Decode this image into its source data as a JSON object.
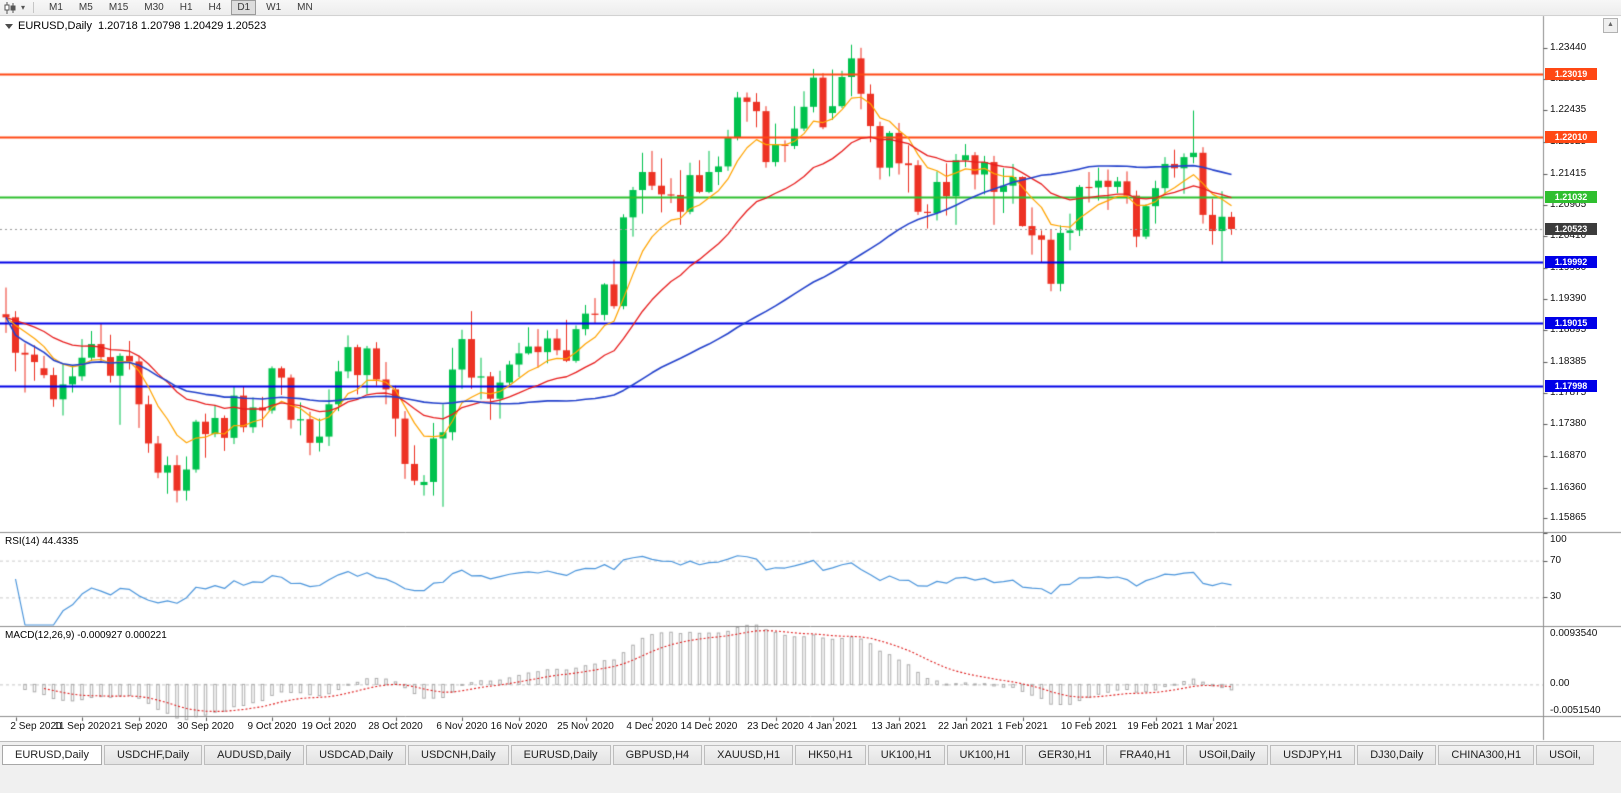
{
  "toolbar": {
    "timeframes": [
      "M1",
      "M5",
      "M15",
      "M30",
      "H1",
      "H4",
      "D1",
      "W1",
      "MN"
    ],
    "active": "D1"
  },
  "chart": {
    "symbol_label": "EURUSD,Daily",
    "ohlc_text": "1.20718 1.20798 1.20429 1.20523"
  },
  "chart_data": {
    "type": "candlestick",
    "title": "EURUSD,Daily",
    "y_range": {
      "max": 1.2392,
      "min": 1.1566
    },
    "y_ticks": [
      "1.23440",
      "1.22930",
      "1.22435",
      "1.21925",
      "1.21415",
      "1.20905",
      "1.20410",
      "1.19900",
      "1.19390",
      "1.18895",
      "1.18385",
      "1.17875",
      "1.17380",
      "1.16870",
      "1.16360",
      "1.15865"
    ],
    "x_axis_dates": [
      {
        "i": 1,
        "label": "2 Sep 2020"
      },
      {
        "i": 8,
        "label": "11 Sep 2020"
      },
      {
        "i": 14,
        "label": "21 Sep 2020"
      },
      {
        "i": 21,
        "label": "30 Sep 2020"
      },
      {
        "i": 28,
        "label": "9 Oct 2020"
      },
      {
        "i": 34,
        "label": "19 Oct 2020"
      },
      {
        "i": 41,
        "label": "28 Oct 2020"
      },
      {
        "i": 48,
        "label": "6 Nov 2020"
      },
      {
        "i": 54,
        "label": "16 Nov 2020"
      },
      {
        "i": 61,
        "label": "25 Nov 2020"
      },
      {
        "i": 68,
        "label": "4 Dec 2020"
      },
      {
        "i": 74,
        "label": "14 Dec 2020"
      },
      {
        "i": 81,
        "label": "23 Dec 2020"
      },
      {
        "i": 87,
        "label": "4 Jan 2021"
      },
      {
        "i": 94,
        "label": "13 Jan 2021"
      },
      {
        "i": 101,
        "label": "22 Jan 2021"
      },
      {
        "i": 107,
        "label": "1 Feb 2021"
      },
      {
        "i": 114,
        "label": "10 Feb 2021"
      },
      {
        "i": 121,
        "label": "19 Feb 2021"
      },
      {
        "i": 127,
        "label": "1 Mar 2021"
      }
    ],
    "candles": [
      [
        1.1915,
        1.1958,
        1.1885,
        1.191
      ],
      [
        1.191,
        1.192,
        1.1823,
        1.1853
      ],
      [
        1.1853,
        1.1868,
        1.1789,
        1.185
      ],
      [
        1.185,
        1.1865,
        1.1808,
        1.1838
      ],
      [
        1.1828,
        1.1848,
        1.1812,
        1.1817
      ],
      [
        1.1817,
        1.1829,
        1.1766,
        1.1778
      ],
      [
        1.1778,
        1.1834,
        1.1752,
        1.1802
      ],
      [
        1.1802,
        1.1833,
        1.1789,
        1.1815
      ],
      [
        1.1815,
        1.1875,
        1.1808,
        1.1845
      ],
      [
        1.1845,
        1.1888,
        1.184,
        1.1867
      ],
      [
        1.1867,
        1.19,
        1.1838,
        1.1846
      ],
      [
        1.1846,
        1.1882,
        1.1805,
        1.1816
      ],
      [
        1.1816,
        1.1852,
        1.1737,
        1.1848
      ],
      [
        1.1848,
        1.1872,
        1.1826,
        1.1839
      ],
      [
        1.1839,
        1.1848,
        1.1732,
        1.177
      ],
      [
        1.177,
        1.1784,
        1.1692,
        1.1707
      ],
      [
        1.1707,
        1.1719,
        1.1651,
        1.166
      ],
      [
        1.166,
        1.1686,
        1.1626,
        1.1672
      ],
      [
        1.1672,
        1.1688,
        1.1612,
        1.1631
      ],
      [
        1.1631,
        1.1686,
        1.1615,
        1.1665
      ],
      [
        1.1665,
        1.1745,
        1.166,
        1.1742
      ],
      [
        1.1742,
        1.1755,
        1.1684,
        1.1722
      ],
      [
        1.1722,
        1.1769,
        1.1717,
        1.1748
      ],
      [
        1.1748,
        1.1752,
        1.1695,
        1.1716
      ],
      [
        1.1716,
        1.1798,
        1.1706,
        1.1784
      ],
      [
        1.1784,
        1.1798,
        1.1725,
        1.1733
      ],
      [
        1.1733,
        1.1781,
        1.1724,
        1.1765
      ],
      [
        1.1765,
        1.1782,
        1.1733,
        1.176
      ],
      [
        1.176,
        1.1831,
        1.1755,
        1.1828
      ],
      [
        1.1828,
        1.1831,
        1.1785,
        1.1813
      ],
      [
        1.1813,
        1.1818,
        1.1731,
        1.1745
      ],
      [
        1.1745,
        1.1773,
        1.172,
        1.1746
      ],
      [
        1.1746,
        1.1758,
        1.1688,
        1.1708
      ],
      [
        1.1708,
        1.1747,
        1.1694,
        1.1718
      ],
      [
        1.1718,
        1.1794,
        1.1703,
        1.177
      ],
      [
        1.177,
        1.184,
        1.1759,
        1.1823
      ],
      [
        1.1823,
        1.1881,
        1.1812,
        1.1862
      ],
      [
        1.1862,
        1.1866,
        1.1786,
        1.1817
      ],
      [
        1.1817,
        1.1864,
        1.1787,
        1.186
      ],
      [
        1.186,
        1.187,
        1.18,
        1.181
      ],
      [
        1.181,
        1.1838,
        1.177,
        1.1794
      ],
      [
        1.1794,
        1.18,
        1.1718,
        1.1747
      ],
      [
        1.1747,
        1.1759,
        1.165,
        1.1674
      ],
      [
        1.1674,
        1.1704,
        1.164,
        1.1647
      ],
      [
        1.164,
        1.1656,
        1.1623,
        1.1645
      ],
      [
        1.1645,
        1.174,
        1.1623,
        1.1715
      ],
      [
        1.1715,
        1.177,
        1.1605,
        1.1725
      ],
      [
        1.1725,
        1.1861,
        1.1712,
        1.1826
      ],
      [
        1.1826,
        1.189,
        1.1795,
        1.1875
      ],
      [
        1.1875,
        1.192,
        1.1795,
        1.1813
      ],
      [
        1.1813,
        1.1845,
        1.1778,
        1.1815
      ],
      [
        1.1815,
        1.1822,
        1.1745,
        1.1779
      ],
      [
        1.1779,
        1.1824,
        1.1747,
        1.1805
      ],
      [
        1.1805,
        1.184,
        1.1799,
        1.1834
      ],
      [
        1.1834,
        1.1869,
        1.1814,
        1.1852
      ],
      [
        1.1852,
        1.1894,
        1.185,
        1.1863
      ],
      [
        1.1863,
        1.1891,
        1.1829,
        1.1854
      ],
      [
        1.1854,
        1.1889,
        1.1836,
        1.1876
      ],
      [
        1.1876,
        1.1891,
        1.1849,
        1.1857
      ],
      [
        1.1857,
        1.1906,
        1.1838,
        1.184
      ],
      [
        1.184,
        1.1897,
        1.1837,
        1.1891
      ],
      [
        1.1891,
        1.193,
        1.1881,
        1.1916
      ],
      [
        1.1916,
        1.1941,
        1.1901,
        1.1914
      ],
      [
        1.1914,
        1.1965,
        1.1905,
        1.1963
      ],
      [
        1.1963,
        1.2003,
        1.1924,
        1.1928
      ],
      [
        1.1928,
        1.2076,
        1.1923,
        1.2071
      ],
      [
        1.2071,
        1.212,
        1.204,
        1.2115
      ],
      [
        1.2115,
        1.2175,
        1.2077,
        1.2144
      ],
      [
        1.2144,
        1.2178,
        1.2115,
        1.2122
      ],
      [
        1.2122,
        1.2166,
        1.2079,
        1.2108
      ],
      [
        1.2108,
        1.2134,
        1.2094,
        1.2107
      ],
      [
        1.2107,
        1.2147,
        1.2059,
        1.208
      ],
      [
        1.208,
        1.2159,
        1.2076,
        1.2139
      ],
      [
        1.2139,
        1.2163,
        1.211,
        1.2112
      ],
      [
        1.2112,
        1.2178,
        1.211,
        1.2144
      ],
      [
        1.2144,
        1.2169,
        1.2123,
        1.2153
      ],
      [
        1.2153,
        1.2212,
        1.2146,
        1.2199
      ],
      [
        1.2199,
        1.2273,
        1.2195,
        1.2264
      ],
      [
        1.2264,
        1.2272,
        1.2225,
        1.2257
      ],
      [
        1.2257,
        1.2271,
        1.2216,
        1.2242
      ],
      [
        1.2242,
        1.225,
        1.2151,
        1.216
      ],
      [
        1.216,
        1.2222,
        1.2153,
        1.2188
      ],
      [
        1.2188,
        1.2195,
        1.216,
        1.2186
      ],
      [
        1.2186,
        1.225,
        1.2181,
        1.2214
      ],
      [
        1.2214,
        1.2274,
        1.221,
        1.2249
      ],
      [
        1.2249,
        1.231,
        1.224,
        1.2296
      ],
      [
        1.2296,
        1.2303,
        1.2213,
        1.2216
      ],
      [
        1.2239,
        1.2309,
        1.2228,
        1.225
      ],
      [
        1.225,
        1.2307,
        1.2247,
        1.2297
      ],
      [
        1.2297,
        1.2349,
        1.2266,
        1.2327
      ],
      [
        1.2327,
        1.2344,
        1.2245,
        1.227
      ],
      [
        1.227,
        1.2285,
        1.2192,
        1.2218
      ],
      [
        1.2218,
        1.2225,
        1.2132,
        1.2151
      ],
      [
        1.2151,
        1.221,
        1.2137,
        1.2207
      ],
      [
        1.2207,
        1.2223,
        1.214,
        1.2158
      ],
      [
        1.2158,
        1.2187,
        1.2111,
        1.2155
      ],
      [
        1.2155,
        1.2163,
        1.2075,
        1.208
      ],
      [
        1.208,
        1.2092,
        1.2053,
        1.2078
      ],
      [
        1.2078,
        1.2145,
        1.2066,
        1.2128
      ],
      [
        1.2128,
        1.2158,
        1.2074,
        1.2105
      ],
      [
        1.2105,
        1.2173,
        1.2059,
        1.2163
      ],
      [
        1.2163,
        1.2189,
        1.2152,
        1.2171
      ],
      [
        1.2171,
        1.2176,
        1.2116,
        1.214
      ],
      [
        1.214,
        1.217,
        1.2108,
        1.216
      ],
      [
        1.216,
        1.217,
        1.2059,
        1.2112
      ],
      [
        1.2112,
        1.215,
        1.2078,
        1.2122
      ],
      [
        1.2122,
        1.2157,
        1.2093,
        1.2136
      ],
      [
        1.2136,
        1.2137,
        1.2056,
        1.2057
      ],
      [
        1.2057,
        1.2087,
        1.2011,
        1.2042
      ],
      [
        1.2042,
        1.205,
        1.1999,
        1.2035
      ],
      [
        1.2035,
        1.2052,
        1.1952,
        1.1964
      ],
      [
        1.1964,
        1.2058,
        1.1952,
        1.2046
      ],
      [
        1.2046,
        1.2077,
        1.2018,
        1.205
      ],
      [
        1.205,
        1.2123,
        1.2041,
        1.212
      ],
      [
        1.212,
        1.2144,
        1.2095,
        1.2119
      ],
      [
        1.2119,
        1.2151,
        1.2098,
        1.213
      ],
      [
        1.213,
        1.2148,
        1.2083,
        1.212
      ],
      [
        1.212,
        1.2136,
        1.211,
        1.2129
      ],
      [
        1.2129,
        1.2145,
        1.2093,
        1.2106
      ],
      [
        1.2106,
        1.2114,
        1.2023,
        1.204
      ],
      [
        1.204,
        1.2092,
        1.2036,
        1.2089
      ],
      [
        1.2089,
        1.213,
        1.2061,
        1.2118
      ],
      [
        1.2118,
        1.2168,
        1.2107,
        1.2157
      ],
      [
        1.2157,
        1.218,
        1.2135,
        1.215
      ],
      [
        1.215,
        1.2174,
        1.2109,
        1.2168
      ],
      [
        1.2168,
        1.2243,
        1.2158,
        1.2175
      ],
      [
        1.2175,
        1.2184,
        1.2061,
        1.2075
      ],
      [
        1.2075,
        1.2101,
        1.2027,
        1.2049
      ],
      [
        1.2049,
        1.2113,
        1.1999,
        1.2072
      ],
      [
        1.20718,
        1.20798,
        1.20429,
        1.20523
      ]
    ],
    "candle_colors": {
      "up": "#00C24E",
      "down": "#ED3224"
    },
    "moving_averages": [
      {
        "type": "ema",
        "period": 8,
        "color": "#FFA400",
        "width": 1.2
      },
      {
        "type": "ema",
        "period": 21,
        "color": "#E81E1E",
        "width": 1.3
      },
      {
        "type": "sma",
        "period": 50,
        "color": "#2442CC",
        "width": 1.6
      }
    ],
    "horizontal_lines": [
      {
        "price": 1.23019,
        "label": "1.23019",
        "color": "#FF4814"
      },
      {
        "price": 1.2201,
        "label": "1.22010",
        "color": "#FF4814"
      },
      {
        "price": 1.21032,
        "label": "1.21032",
        "color": "#2FBF2F"
      },
      {
        "price": 1.19992,
        "label": "1.19992",
        "color": "#0000E8"
      },
      {
        "price": 1.19015,
        "label": "1.19015",
        "color": "#0000E8"
      },
      {
        "price": 1.17998,
        "label": "1.17998",
        "color": "#0000E8"
      }
    ],
    "current_price": {
      "price": 1.20523,
      "label": "1.20523",
      "line_color": "#9a9a9a",
      "box_color": "#3c3c3c"
    },
    "indicators": {
      "rsi": {
        "label": "RSI(14) 44.4335",
        "period": 14,
        "value": "44.4335",
        "levels": [
          100,
          70,
          30
        ],
        "level_labels": [
          "100",
          "70",
          "30"
        ],
        "color": "#4C96DC"
      },
      "macd": {
        "label": "MACD(12,26,9) -0.000927 0.000221",
        "fast": 12,
        "slow": 26,
        "smooth": 9,
        "value": "-0.000927",
        "signal_value": "0.000221",
        "axis_labels": [
          "0.0093540",
          "0.00",
          "-0.0051540"
        ],
        "axis_max": 0.009354,
        "axis_min": -0.005154,
        "histogram_color": "#ADADAD",
        "signal_color": "#E02020",
        "zero_line_color": "#c9c9c9"
      }
    }
  },
  "tabs": {
    "active_index": 0,
    "items": [
      "EURUSD,Daily",
      "USDCHF,Daily",
      "AUDUSD,Daily",
      "USDCAD,Daily",
      "USDCNH,Daily",
      "EURUSD,Daily",
      "GBPUSD,H4",
      "XAUUSD,H1",
      "HK50,H1",
      "UK100,H1",
      "UK100,H1",
      "GER30,H1",
      "FRA40,H1",
      "USOil,Daily",
      "USDJPY,H1",
      "DJ30,Daily",
      "CHINA300,H1",
      "USOil,"
    ]
  }
}
